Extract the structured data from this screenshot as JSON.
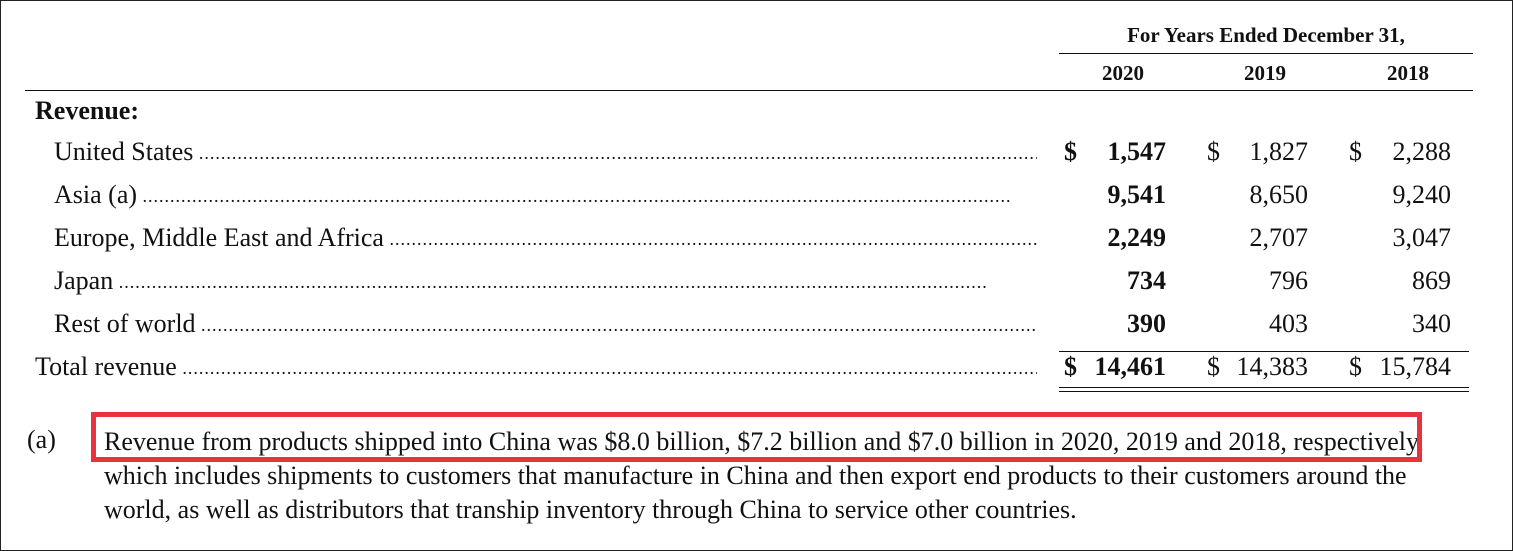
{
  "header": {
    "period_caption": "For Years Ended December 31,",
    "years": [
      "2020",
      "2019",
      "2018"
    ]
  },
  "section_label": "Revenue:",
  "currency_symbol": "$",
  "rows": [
    {
      "label": "United States",
      "values": [
        "1,547",
        "1,827",
        "2,288"
      ],
      "has_dollar": true
    },
    {
      "label": "Asia (a)",
      "values": [
        "9,541",
        "8,650",
        "9,240"
      ],
      "has_dollar": false
    },
    {
      "label": "Europe, Middle East and Africa",
      "values": [
        "2,249",
        "2,707",
        "3,047"
      ],
      "has_dollar": false
    },
    {
      "label": "Japan",
      "values": [
        "734",
        "796",
        "869"
      ],
      "has_dollar": false
    },
    {
      "label": "Rest of world",
      "values": [
        "390",
        "403",
        "340"
      ],
      "has_dollar": false
    }
  ],
  "total": {
    "label": "Total revenue",
    "values": [
      "14,461",
      "14,383",
      "15,784"
    ]
  },
  "footnote": {
    "mark": "(a)",
    "text": "Revenue from products shipped into China was $8.0 billion, $7.2 billion and $7.0 billion in 2020, 2019 and 2018, respectively, which includes shipments to customers that manufacture in China and then export end products to their customers around the world, as well as distributors that tranship inventory through China to service other countries."
  },
  "colors": {
    "highlight": "#e8323c",
    "text": "#111111",
    "background": "#ffffff"
  }
}
